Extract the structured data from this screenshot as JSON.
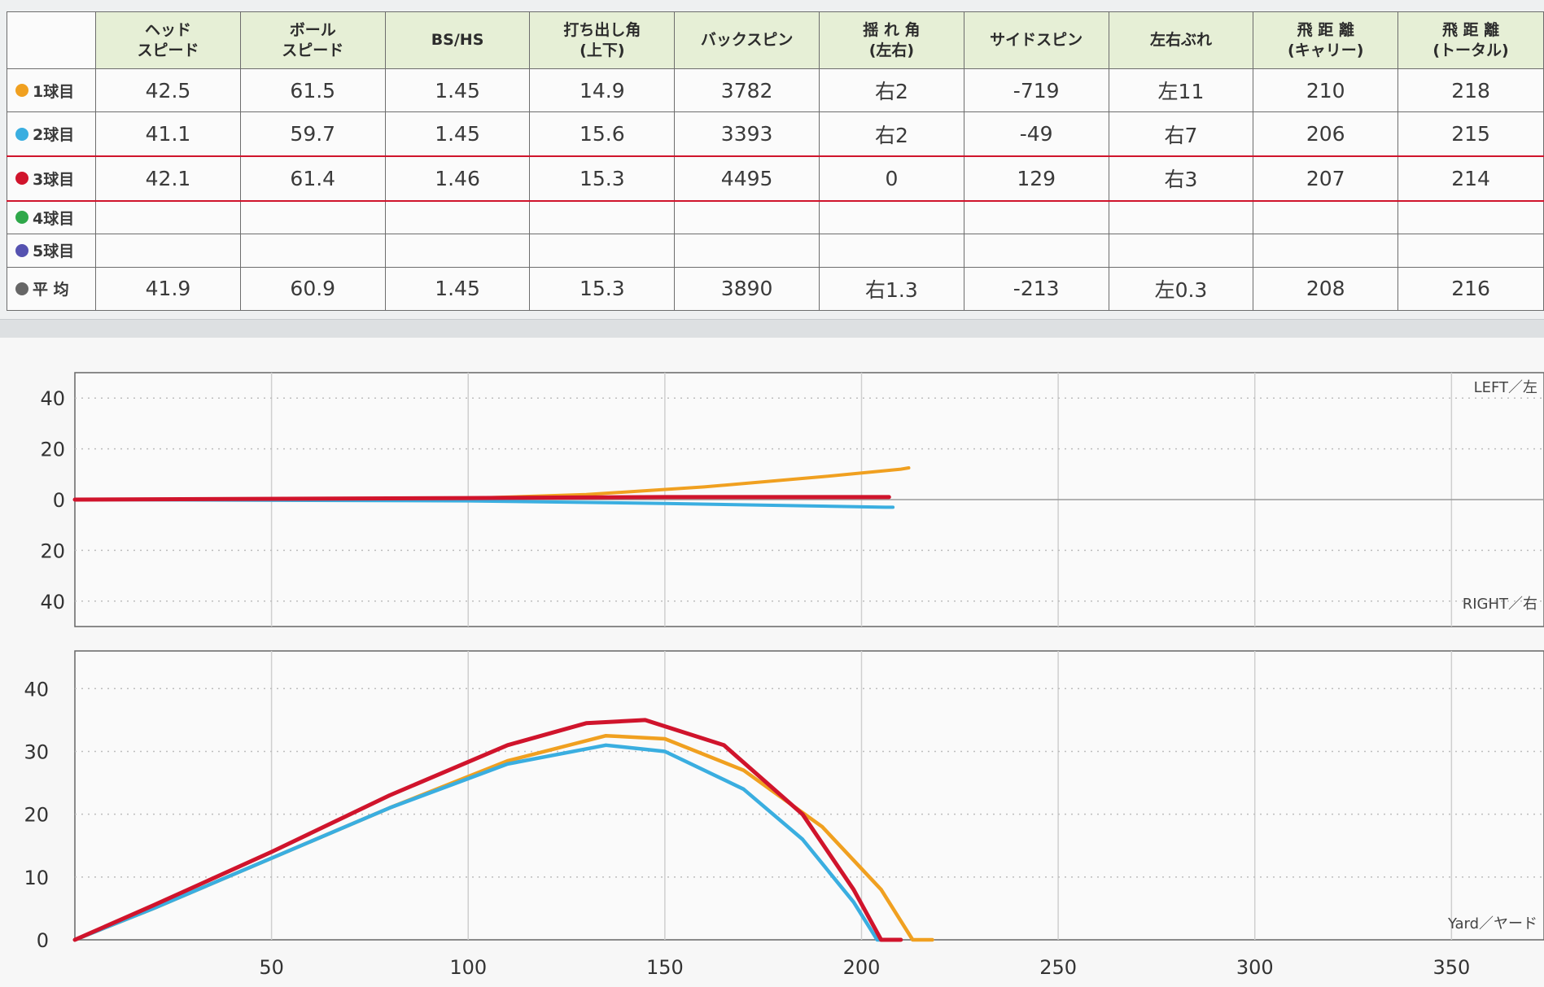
{
  "table": {
    "headers": [
      "",
      "ヘッド\nスピード",
      "ボール\nスピード",
      "BS/HS",
      "打ち出し角\n(上下)",
      "バックスピン",
      "揺 れ 角\n(左右)",
      "サイドスピン",
      "左右ぶれ",
      "飛 距 離\n(キャリー)",
      "飛 距 離\n(トータル)"
    ],
    "rows": [
      {
        "label": "1球目",
        "color": "#f0a020",
        "cells": [
          "42.5",
          "61.5",
          "1.45",
          "14.9",
          "3782",
          "右2",
          "-719",
          "左11",
          "210",
          "218"
        ]
      },
      {
        "label": "2球目",
        "color": "#3aaee0",
        "cells": [
          "41.1",
          "59.7",
          "1.45",
          "15.6",
          "3393",
          "右2",
          "-49",
          "右7",
          "206",
          "215"
        ]
      },
      {
        "label": "3球目",
        "color": "#d0142c",
        "active": true,
        "cells": [
          "42.1",
          "61.4",
          "1.46",
          "15.3",
          "4495",
          "0",
          "129",
          "右3",
          "207",
          "214"
        ]
      },
      {
        "label": "4球目",
        "color": "#2fa84a",
        "cells": [
          "",
          "",
          "",
          "",
          "",
          "",
          "",
          "",
          "",
          ""
        ]
      },
      {
        "label": "5球目",
        "color": "#5552b0",
        "cells": [
          "",
          "",
          "",
          "",
          "",
          "",
          "",
          "",
          "",
          ""
        ]
      },
      {
        "label": "平 均",
        "color": "#666666",
        "cells": [
          "41.9",
          "60.9",
          "1.45",
          "15.3",
          "3890",
          "右1.3",
          "-213",
          "左0.3",
          "208",
          "216"
        ]
      }
    ]
  },
  "chart_data": [
    {
      "type": "line",
      "title": "",
      "xlim": [
        0,
        370
      ],
      "ylim": [
        -50,
        50
      ],
      "y_tick_labels": [
        "40",
        "20",
        "0",
        "20",
        "40"
      ],
      "y_tick_values": [
        40,
        20,
        0,
        -20,
        -40
      ],
      "side_labels": {
        "top": "LEFT／左",
        "bottom": "RIGHT／右"
      },
      "grid": true,
      "series": [
        {
          "color": "#f0a020",
          "points": [
            [
              0,
              0
            ],
            [
              100,
              0.5
            ],
            [
              130,
              2
            ],
            [
              160,
              5
            ],
            [
              190,
              9
            ],
            [
              210,
              12
            ],
            [
              212,
              12.5
            ]
          ]
        },
        {
          "color": "#3aaee0",
          "points": [
            [
              0,
              0
            ],
            [
              100,
              -0.5
            ],
            [
              150,
              -1.5
            ],
            [
              206,
              -3
            ],
            [
              208,
              -3
            ]
          ]
        },
        {
          "color": "#d0142c",
          "points": [
            [
              0,
              0
            ],
            [
              100,
              0.6
            ],
            [
              150,
              1
            ],
            [
              207,
              1
            ]
          ]
        }
      ]
    },
    {
      "type": "line",
      "title": "",
      "xlim": [
        0,
        370
      ],
      "ylim": [
        0,
        46
      ],
      "x_ticks": [
        50,
        100,
        150,
        200,
        250,
        300,
        350
      ],
      "y_ticks": [
        0,
        10,
        20,
        30,
        40
      ],
      "side_label": "Yard／ヤード",
      "grid": true,
      "series": [
        {
          "color": "#f0a020",
          "points": [
            [
              0,
              0
            ],
            [
              20,
              5
            ],
            [
              50,
              13
            ],
            [
              80,
              21
            ],
            [
              110,
              28.5
            ],
            [
              135,
              32.5
            ],
            [
              150,
              32
            ],
            [
              170,
              27
            ],
            [
              190,
              18
            ],
            [
              205,
              8
            ],
            [
              213,
              0
            ],
            [
              215,
              0
            ],
            [
              218,
              0
            ]
          ]
        },
        {
          "color": "#3aaee0",
          "points": [
            [
              0,
              0
            ],
            [
              20,
              5
            ],
            [
              50,
              13
            ],
            [
              80,
              21
            ],
            [
              110,
              28
            ],
            [
              135,
              31
            ],
            [
              150,
              30
            ],
            [
              170,
              24
            ],
            [
              185,
              16
            ],
            [
              198,
              6
            ],
            [
              204,
              0
            ],
            [
              206,
              0
            ]
          ]
        },
        {
          "color": "#d0142c",
          "points": [
            [
              0,
              0
            ],
            [
              20,
              5.5
            ],
            [
              50,
              14
            ],
            [
              80,
              23
            ],
            [
              110,
              31
            ],
            [
              130,
              34.5
            ],
            [
              145,
              35
            ],
            [
              165,
              31
            ],
            [
              185,
              20
            ],
            [
              198,
              8
            ],
            [
              205,
              0
            ],
            [
              207,
              0
            ],
            [
              210,
              0
            ]
          ]
        }
      ]
    }
  ]
}
